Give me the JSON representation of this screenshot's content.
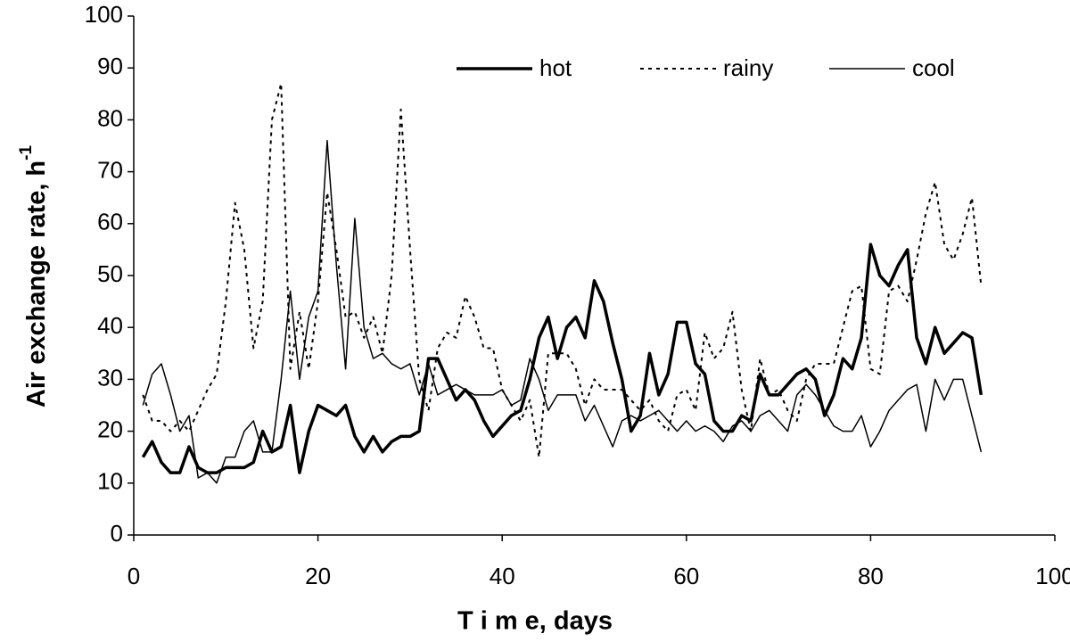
{
  "chart_data": {
    "type": "line",
    "x_label": "T i m e,  days",
    "y_label": "Air exchange rate, h",
    "y_label_sup": "-1",
    "x": [
      1,
      2,
      3,
      4,
      5,
      6,
      7,
      8,
      9,
      10,
      11,
      12,
      13,
      14,
      15,
      16,
      17,
      18,
      19,
      20,
      21,
      22,
      23,
      24,
      25,
      26,
      27,
      28,
      29,
      30,
      31,
      32,
      33,
      34,
      35,
      36,
      37,
      38,
      39,
      40,
      41,
      42,
      43,
      44,
      45,
      46,
      47,
      48,
      49,
      50,
      51,
      52,
      53,
      54,
      55,
      56,
      57,
      58,
      59,
      60,
      61,
      62,
      63,
      64,
      65,
      66,
      67,
      68,
      69,
      70,
      71,
      72,
      73,
      74,
      75,
      76,
      77,
      78,
      79,
      80,
      81,
      82,
      83,
      84,
      85,
      86,
      87,
      88,
      89,
      90,
      91,
      92
    ],
    "series": [
      {
        "name": "hot",
        "color": "#000000",
        "line_style": "solid",
        "line_width": 3.5,
        "values": [
          15,
          18,
          14,
          12,
          12,
          17,
          13,
          12,
          12,
          13,
          13,
          13,
          14,
          20,
          16,
          17,
          25,
          12,
          20,
          25,
          24,
          23,
          25,
          19,
          16,
          19,
          16,
          18,
          19,
          19,
          20,
          34,
          34,
          30,
          26,
          28,
          26,
          22,
          19,
          21,
          23,
          24,
          30,
          38,
          42,
          34,
          40,
          42,
          38,
          49,
          45,
          37,
          30,
          20,
          23,
          35,
          27,
          31,
          41,
          41,
          33,
          31,
          22,
          20,
          20,
          23,
          22,
          31,
          27,
          27,
          29,
          31,
          32,
          30,
          23,
          27,
          34,
          32,
          38,
          56,
          50,
          48,
          52,
          55,
          38,
          33,
          40,
          35,
          37,
          39,
          38,
          27
        ]
      },
      {
        "name": "rainy",
        "color": "#000000",
        "line_style": "dotted",
        "line_width": 2,
        "values": [
          27,
          22,
          22,
          20,
          22,
          20,
          24,
          28,
          31,
          45,
          64,
          55,
          36,
          45,
          80,
          87,
          32,
          43,
          32,
          45,
          66,
          55,
          42,
          43,
          38,
          42,
          35,
          50,
          82,
          55,
          30,
          24,
          36,
          39,
          38,
          46,
          42,
          36,
          36,
          28,
          25,
          22,
          26,
          15,
          35,
          35,
          35,
          32,
          25,
          30,
          28,
          28,
          28,
          26,
          24,
          26,
          22,
          20,
          27,
          28,
          24,
          39,
          34,
          36,
          43,
          28,
          20,
          34,
          27,
          28,
          24,
          22,
          30,
          33,
          33,
          33,
          40,
          47,
          48,
          32,
          31,
          47,
          48,
          45,
          53,
          62,
          68,
          56,
          53,
          58,
          65,
          48
        ]
      },
      {
        "name": "cool",
        "color": "#000000",
        "line_style": "solid",
        "line_width": 1.5,
        "values": [
          25,
          31,
          33,
          27,
          20,
          23,
          11,
          12,
          10,
          15,
          15,
          20,
          22,
          16,
          16,
          30,
          47,
          30,
          42,
          47,
          76,
          52,
          32,
          61,
          40,
          34,
          35,
          33,
          32,
          33,
          27,
          33,
          27,
          28,
          29,
          28,
          27,
          27,
          27,
          28,
          25,
          26,
          34,
          30,
          24,
          27,
          27,
          27,
          22,
          25,
          21,
          17,
          22,
          23,
          22,
          23,
          24,
          22,
          20,
          22,
          20,
          21,
          20,
          18,
          21,
          22,
          20,
          23,
          24,
          22,
          20,
          27,
          29,
          27,
          24,
          21,
          20,
          20,
          23,
          17,
          20,
          24,
          26,
          28,
          29,
          20,
          30,
          26,
          30,
          30,
          23,
          16
        ]
      }
    ],
    "xlim": [
      0,
      100
    ],
    "xticks": [
      0,
      20,
      40,
      60,
      80,
      100
    ],
    "ylim": [
      0,
      100
    ],
    "yticks": [
      0,
      10,
      20,
      30,
      40,
      50,
      60,
      70,
      80,
      90,
      100
    ],
    "legend": "top-right",
    "grid": false
  }
}
